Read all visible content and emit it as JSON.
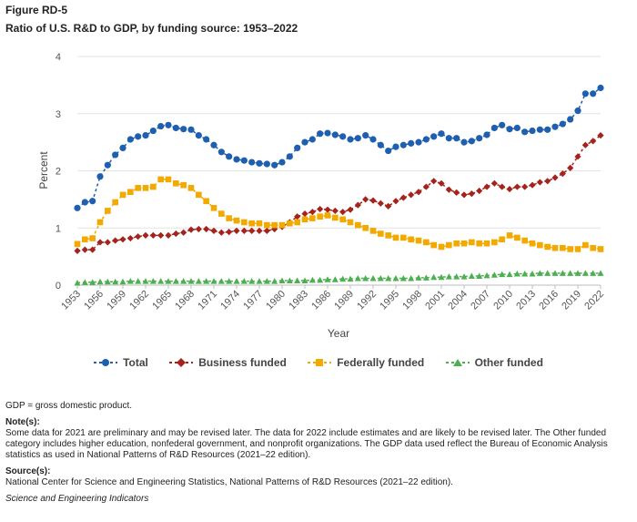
{
  "figure": {
    "label": "Figure RD-5",
    "title": "Ratio of U.S. R&D to GDP, by funding source: 1953–2022"
  },
  "chart_data": {
    "type": "line",
    "ylabel": "Percent",
    "xlabel": "Year",
    "ylim": [
      0,
      4
    ],
    "yticks": [
      0,
      1,
      2,
      3,
      4
    ],
    "xlim": [
      1953,
      2022
    ],
    "xticks": [
      1953,
      1956,
      1959,
      1962,
      1965,
      1968,
      1971,
      1974,
      1977,
      1980,
      1983,
      1986,
      1989,
      1992,
      1995,
      1998,
      2001,
      2004,
      2007,
      2010,
      2013,
      2016,
      2019,
      2022
    ],
    "grid": "horizontal",
    "legend_position": "bottom",
    "x": [
      1953,
      1954,
      1955,
      1956,
      1957,
      1958,
      1959,
      1960,
      1961,
      1962,
      1963,
      1964,
      1965,
      1966,
      1967,
      1968,
      1969,
      1970,
      1971,
      1972,
      1973,
      1974,
      1975,
      1976,
      1977,
      1978,
      1979,
      1980,
      1981,
      1982,
      1983,
      1984,
      1985,
      1986,
      1987,
      1988,
      1989,
      1990,
      1991,
      1992,
      1993,
      1994,
      1995,
      1996,
      1997,
      1998,
      1999,
      2000,
      2001,
      2002,
      2003,
      2004,
      2005,
      2006,
      2007,
      2008,
      2009,
      2010,
      2011,
      2012,
      2013,
      2014,
      2015,
      2016,
      2017,
      2018,
      2019,
      2020,
      2021,
      2022
    ],
    "series": [
      {
        "name": "Total",
        "color": "#1f5fb0",
        "marker": "circle",
        "values": [
          1.35,
          1.45,
          1.47,
          1.9,
          2.1,
          2.28,
          2.4,
          2.55,
          2.6,
          2.62,
          2.7,
          2.78,
          2.8,
          2.75,
          2.73,
          2.72,
          2.62,
          2.55,
          2.45,
          2.33,
          2.25,
          2.2,
          2.18,
          2.15,
          2.13,
          2.12,
          2.1,
          2.15,
          2.25,
          2.4,
          2.5,
          2.55,
          2.65,
          2.66,
          2.63,
          2.6,
          2.55,
          2.57,
          2.62,
          2.55,
          2.45,
          2.35,
          2.42,
          2.45,
          2.48,
          2.5,
          2.55,
          2.6,
          2.65,
          2.57,
          2.57,
          2.5,
          2.52,
          2.57,
          2.63,
          2.75,
          2.8,
          2.73,
          2.75,
          2.68,
          2.7,
          2.72,
          2.72,
          2.77,
          2.82,
          2.9,
          3.05,
          3.35,
          3.35,
          3.45
        ]
      },
      {
        "name": "Business funded",
        "color": "#a4231c",
        "marker": "diamond",
        "values": [
          0.6,
          0.62,
          0.62,
          0.75,
          0.75,
          0.78,
          0.8,
          0.82,
          0.85,
          0.87,
          0.87,
          0.87,
          0.87,
          0.9,
          0.92,
          0.97,
          0.98,
          0.98,
          0.95,
          0.92,
          0.93,
          0.95,
          0.95,
          0.95,
          0.95,
          0.95,
          0.98,
          1.02,
          1.1,
          1.2,
          1.25,
          1.28,
          1.33,
          1.32,
          1.3,
          1.28,
          1.32,
          1.4,
          1.5,
          1.48,
          1.43,
          1.38,
          1.47,
          1.53,
          1.58,
          1.63,
          1.72,
          1.82,
          1.78,
          1.67,
          1.62,
          1.58,
          1.6,
          1.65,
          1.72,
          1.78,
          1.72,
          1.68,
          1.72,
          1.72,
          1.75,
          1.8,
          1.82,
          1.88,
          1.95,
          2.05,
          2.25,
          2.45,
          2.52,
          2.62
        ]
      },
      {
        "name": "Federally funded",
        "color": "#f2a900",
        "marker": "square",
        "values": [
          0.72,
          0.8,
          0.82,
          1.1,
          1.3,
          1.45,
          1.58,
          1.63,
          1.7,
          1.7,
          1.72,
          1.85,
          1.85,
          1.78,
          1.75,
          1.7,
          1.58,
          1.47,
          1.35,
          1.25,
          1.17,
          1.13,
          1.1,
          1.08,
          1.08,
          1.05,
          1.05,
          1.05,
          1.08,
          1.1,
          1.15,
          1.17,
          1.2,
          1.22,
          1.18,
          1.15,
          1.1,
          1.05,
          1.0,
          0.95,
          0.9,
          0.87,
          0.83,
          0.83,
          0.8,
          0.78,
          0.75,
          0.7,
          0.67,
          0.7,
          0.73,
          0.73,
          0.75,
          0.73,
          0.73,
          0.75,
          0.8,
          0.87,
          0.83,
          0.78,
          0.73,
          0.7,
          0.67,
          0.65,
          0.65,
          0.63,
          0.63,
          0.7,
          0.65,
          0.63
        ]
      },
      {
        "name": "Other funded",
        "color": "#4caf50",
        "marker": "triangle",
        "values": [
          0.04,
          0.05,
          0.05,
          0.06,
          0.06,
          0.06,
          0.06,
          0.07,
          0.07,
          0.07,
          0.07,
          0.07,
          0.07,
          0.07,
          0.07,
          0.07,
          0.07,
          0.07,
          0.07,
          0.07,
          0.07,
          0.07,
          0.07,
          0.07,
          0.07,
          0.07,
          0.07,
          0.08,
          0.08,
          0.08,
          0.08,
          0.09,
          0.09,
          0.1,
          0.1,
          0.11,
          0.11,
          0.12,
          0.12,
          0.12,
          0.12,
          0.12,
          0.12,
          0.12,
          0.12,
          0.13,
          0.13,
          0.14,
          0.14,
          0.15,
          0.15,
          0.15,
          0.16,
          0.16,
          0.17,
          0.18,
          0.19,
          0.19,
          0.2,
          0.2,
          0.2,
          0.21,
          0.21,
          0.21,
          0.21,
          0.21,
          0.21,
          0.21,
          0.21,
          0.21
        ]
      }
    ]
  },
  "legend": [
    {
      "label": "Total"
    },
    {
      "label": "Business funded"
    },
    {
      "label": "Federally funded"
    },
    {
      "label": "Other funded"
    }
  ],
  "notes": {
    "abbrev": "GDP = gross domestic product.",
    "notes_heading": "Note(s):",
    "notes_text": "Some data for 2021 are preliminary and may be revised later. The data for 2022 include estimates and are likely to be revised later. The Other funded category includes higher education, nonfederal government, and nonprofit organizations. The GDP data used reflect the Bureau of Economic Analysis statistics as used in National Patterns of R&D Resources (2021–22 edition).",
    "source_heading": "Source(s):",
    "source_text": "National Center for Science and Engineering Statistics, National Patterns of R&D Resources (2021–22 edition).",
    "publication": "Science and Engineering Indicators"
  }
}
